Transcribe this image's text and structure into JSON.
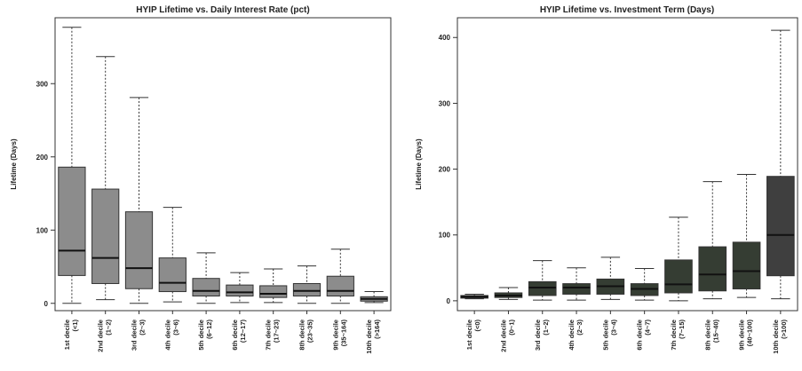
{
  "chart_data": [
    {
      "type": "boxplot",
      "title": "HYIP Lifetime vs. Daily Interest Rate (pct)",
      "ylabel": "Lifetime (Days)",
      "xlabel": "",
      "ylim": [
        -10,
        390
      ],
      "yticks": [
        0,
        100,
        200,
        300
      ],
      "grid": false,
      "box_color": "#8c8c8c",
      "categories": [
        [
          "1st decile",
          "(<1)"
        ],
        [
          "2nd decile",
          "(1~2)"
        ],
        [
          "3rd decile",
          "(2~3)"
        ],
        [
          "4th decile",
          "(3~6)"
        ],
        [
          "5th decile",
          "(6~12)"
        ],
        [
          "6th decile",
          "(12~17)"
        ],
        [
          "7th decile",
          "(17~23)"
        ],
        [
          "8th decile",
          "(23~35)"
        ],
        [
          "9th decile",
          "(35~164)"
        ],
        [
          "10th decile",
          "(>164)"
        ]
      ],
      "boxes": [
        {
          "min": 0,
          "q1": 38,
          "median": 72,
          "q3": 186,
          "max": 377
        },
        {
          "min": 5,
          "q1": 27,
          "median": 62,
          "q3": 156,
          "max": 337
        },
        {
          "min": 0,
          "q1": 20,
          "median": 48,
          "q3": 125,
          "max": 281
        },
        {
          "min": 2,
          "q1": 16,
          "median": 28,
          "q3": 62,
          "max": 131
        },
        {
          "min": 0,
          "q1": 10,
          "median": 17,
          "q3": 34,
          "max": 69
        },
        {
          "min": 1,
          "q1": 10,
          "median": 15,
          "q3": 25,
          "max": 42
        },
        {
          "min": 1,
          "q1": 8,
          "median": 13,
          "q3": 24,
          "max": 47
        },
        {
          "min": 0,
          "q1": 10,
          "median": 17,
          "q3": 27,
          "max": 51
        },
        {
          "min": 0,
          "q1": 10,
          "median": 17,
          "q3": 37,
          "max": 74
        },
        {
          "min": 1,
          "q1": 3,
          "median": 6,
          "q3": 9,
          "max": 16
        }
      ]
    },
    {
      "type": "boxplot",
      "title": "HYIP Lifetime vs. Investment Term (Days)",
      "ylabel": "Lifetime (Days)",
      "xlabel": "",
      "ylim": [
        -15,
        430
      ],
      "yticks": [
        0,
        100,
        200,
        300,
        400
      ],
      "grid": false,
      "box_color": "#353d33",
      "last_box_color": "#3f3f3f",
      "categories": [
        [
          "1st decile",
          "(<0)"
        ],
        [
          "2nd decile",
          "(0~1)"
        ],
        [
          "3rd decile",
          "(1~2)"
        ],
        [
          "4th decile",
          "(2~3)"
        ],
        [
          "5th decile",
          "(3~4)"
        ],
        [
          "6th decile",
          "(4~7)"
        ],
        [
          "7th decile",
          "(7~15)"
        ],
        [
          "8th decile",
          "(15~40)"
        ],
        [
          "9th decile",
          "(40~100)"
        ],
        [
          "10th decile",
          "(>100)"
        ]
      ],
      "boxes": [
        {
          "min": 3,
          "q1": 4,
          "median": 6,
          "q3": 8,
          "max": 10
        },
        {
          "min": 2,
          "q1": 5,
          "median": 8,
          "q3": 12,
          "max": 20
        },
        {
          "min": 1,
          "q1": 8,
          "median": 20,
          "q3": 29,
          "max": 61
        },
        {
          "min": 1,
          "q1": 10,
          "median": 20,
          "q3": 26,
          "max": 50
        },
        {
          "min": 2,
          "q1": 10,
          "median": 22,
          "q3": 33,
          "max": 66
        },
        {
          "min": 1,
          "q1": 8,
          "median": 18,
          "q3": 26,
          "max": 49
        },
        {
          "min": 0,
          "q1": 12,
          "median": 25,
          "q3": 62,
          "max": 127
        },
        {
          "min": 3,
          "q1": 15,
          "median": 40,
          "q3": 82,
          "max": 181
        },
        {
          "min": 5,
          "q1": 18,
          "median": 45,
          "q3": 89,
          "max": 192
        },
        {
          "min": 3,
          "q1": 38,
          "median": 100,
          "q3": 189,
          "max": 411
        }
      ]
    }
  ]
}
